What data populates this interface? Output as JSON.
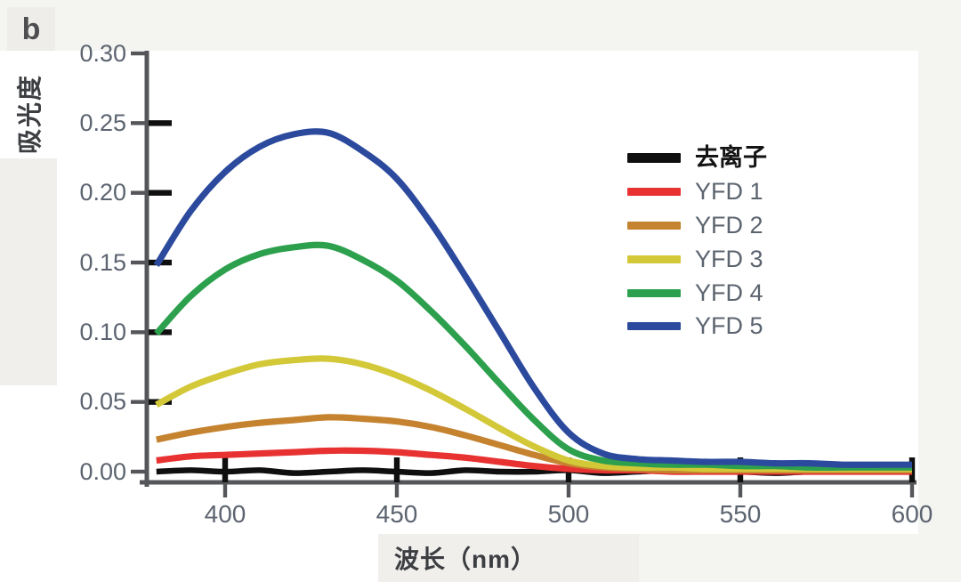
{
  "panel_label": "b",
  "chart_data": {
    "type": "line",
    "xlabel": "波长（nm）",
    "ylabel": "吸光度",
    "xlim": [
      380,
      600
    ],
    "ylim": [
      0,
      0.3
    ],
    "xticks": [
      400,
      450,
      500,
      550,
      600
    ],
    "yticks": [
      "0.30",
      "0.25",
      "0.20",
      "0.15",
      "0.10",
      "0.05",
      "0.00"
    ],
    "grid": false,
    "legend_position": "upper right",
    "x": [
      380,
      390,
      400,
      410,
      420,
      430,
      440,
      450,
      460,
      470,
      480,
      490,
      500,
      510,
      520,
      530,
      540,
      550,
      560,
      570,
      580,
      590,
      600
    ],
    "series": [
      {
        "name": "去离子",
        "color": "#0f0f0f",
        "bold_label": true,
        "values": [
          0.0,
          0.001,
          0.0,
          0.001,
          -0.001,
          0.0,
          0.001,
          0.0,
          -0.001,
          0.001,
          0.0,
          0.0,
          0.001,
          -0.001,
          0.0,
          0.001,
          0.0,
          0.0,
          -0.001,
          0.0,
          0.001,
          0.0,
          0.0
        ]
      },
      {
        "name": "YFD 1",
        "color": "#e73231",
        "bold_label": false,
        "values": [
          0.008,
          0.011,
          0.012,
          0.013,
          0.014,
          0.015,
          0.015,
          0.014,
          0.012,
          0.01,
          0.007,
          0.004,
          0.002,
          0.001,
          0.001,
          0.0,
          0.0,
          0.0,
          0.0,
          0.0,
          0.0,
          0.0,
          0.0
        ]
      },
      {
        "name": "YFD 2",
        "color": "#c5822f",
        "bold_label": false,
        "values": [
          0.023,
          0.028,
          0.032,
          0.035,
          0.037,
          0.039,
          0.038,
          0.036,
          0.032,
          0.026,
          0.019,
          0.012,
          0.006,
          0.003,
          0.002,
          0.001,
          0.001,
          0.001,
          0.001,
          0.001,
          0.001,
          0.001,
          0.001
        ]
      },
      {
        "name": "YFD 3",
        "color": "#d3c838",
        "bold_label": false,
        "values": [
          0.048,
          0.061,
          0.07,
          0.077,
          0.08,
          0.081,
          0.077,
          0.069,
          0.058,
          0.045,
          0.031,
          0.018,
          0.008,
          0.004,
          0.003,
          0.003,
          0.002,
          0.002,
          0.002,
          0.002,
          0.002,
          0.002,
          0.002
        ]
      },
      {
        "name": "YFD 4",
        "color": "#2da04d",
        "bold_label": false,
        "values": [
          0.099,
          0.126,
          0.145,
          0.156,
          0.161,
          0.162,
          0.152,
          0.137,
          0.115,
          0.09,
          0.063,
          0.037,
          0.016,
          0.008,
          0.006,
          0.005,
          0.005,
          0.004,
          0.004,
          0.003,
          0.003,
          0.003,
          0.003
        ]
      },
      {
        "name": "YFD 5",
        "color": "#2c4a9d",
        "bold_label": false,
        "values": [
          0.148,
          0.187,
          0.215,
          0.233,
          0.242,
          0.243,
          0.23,
          0.21,
          0.178,
          0.14,
          0.1,
          0.06,
          0.028,
          0.013,
          0.009,
          0.008,
          0.007,
          0.007,
          0.006,
          0.006,
          0.005,
          0.005,
          0.005
        ]
      }
    ]
  }
}
